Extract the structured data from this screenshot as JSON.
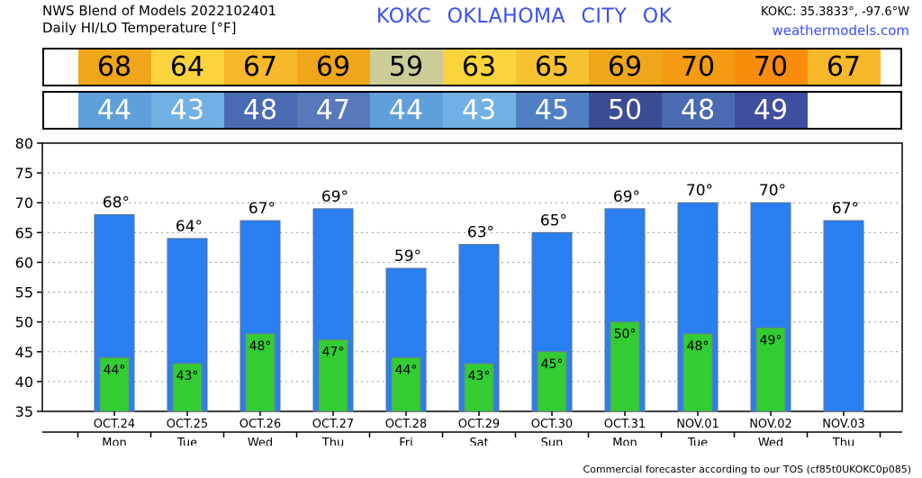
{
  "header": {
    "line1": "NWS Blend of Models 2022102401",
    "line2": "Daily HI/LO Temperature [°F]",
    "station": "KOKC   OKLAHOMA CITY   OK",
    "coords": "KOKC: 35.3833°, -97.6°W",
    "site": "weathermodels.com"
  },
  "footer": "Commercial forecaster according to our TOS (cf85t0UKOKC0p085)",
  "colors": {
    "hi_bar": "#2a7ff0",
    "lo_bar": "#33cc33",
    "hi_cells": [
      "#f0a61a",
      "#fbd33c",
      "#f7b82b",
      "#f0a61a",
      "#cccc99",
      "#fbd33c",
      "#f7c231",
      "#f0a61a",
      "#f49a13",
      "#fa8c0b",
      "#f7b82b"
    ],
    "lo_cells": [
      "#5fa0da",
      "#70b0e4",
      "#4a6ab4",
      "#5878bc",
      "#5fa0da",
      "#70b0e4",
      "#5080c4",
      "#3c4c94",
      "#4a6ab4",
      "#404ea0"
    ]
  },
  "chart_data": {
    "type": "bar",
    "categories": [
      "OCT.24",
      "OCT.25",
      "OCT.26",
      "OCT.27",
      "OCT.28",
      "OCT.29",
      "OCT.30",
      "OCT.31",
      "NOV.01",
      "NOV.02",
      "NOV.03"
    ],
    "weekdays": [
      "Mon",
      "Tue",
      "Wed",
      "Thu",
      "Fri",
      "Sat",
      "Sun",
      "Mon",
      "Tue",
      "Wed",
      "Thu"
    ],
    "series": [
      {
        "values": [
          68,
          64,
          67,
          69,
          59,
          63,
          65,
          69,
          70,
          70,
          67
        ]
      },
      {
        "values": [
          44,
          43,
          48,
          47,
          44,
          43,
          45,
          50,
          48,
          49,
          null
        ]
      }
    ],
    "hi_labels": [
      "68°",
      "64°",
      "67°",
      "69°",
      "59°",
      "63°",
      "65°",
      "69°",
      "70°",
      "70°",
      "67°"
    ],
    "lo_labels": [
      "44°",
      "43°",
      "48°",
      "47°",
      "44°",
      "43°",
      "45°",
      "50°",
      "48°",
      "49°"
    ],
    "hi_strip": [
      "68",
      "64",
      "67",
      "69",
      "59",
      "63",
      "65",
      "69",
      "70",
      "70",
      "67"
    ],
    "lo_strip": [
      "44",
      "43",
      "48",
      "47",
      "44",
      "43",
      "45",
      "50",
      "48",
      "49"
    ],
    "ylim": [
      35,
      80
    ],
    "yticks": [
      "35",
      "40",
      "45",
      "50",
      "55",
      "60",
      "65",
      "70",
      "75",
      "80"
    ],
    "grid": true
  }
}
